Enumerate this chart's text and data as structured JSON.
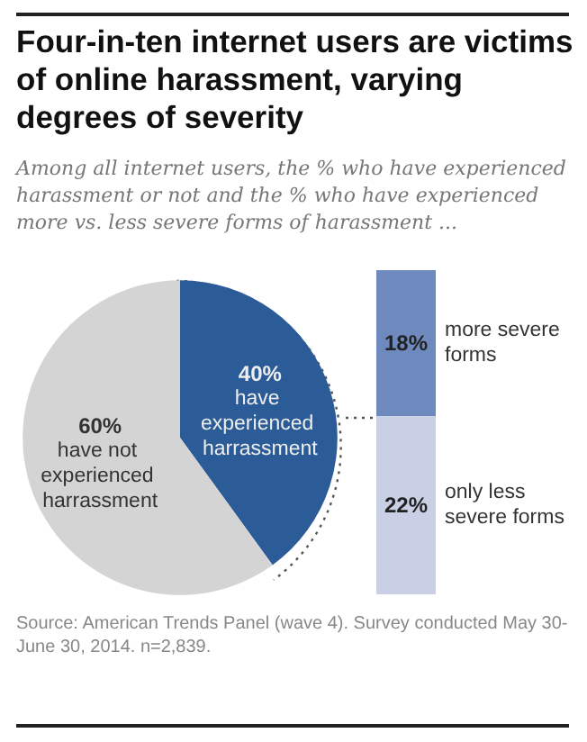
{
  "chart_data": [
    {
      "type": "pie",
      "title": "Four-in-ten  internet users are victims of online harassment,  varying degrees of severity",
      "subtitle": "Among all internet users, the % who have experienced harassment or not and the % who have experienced more vs. less severe forms of harassment ...",
      "annotations": [
        "Source: American Trends Panel (wave 4). Survey conducted May 30-June 30, 2014. n=2,839."
      ],
      "categories": [
        "have experienced harrassment",
        "have not experienced harrassment"
      ],
      "values": [
        40,
        60
      ],
      "colors": [
        "#2b5c98",
        "#d4d4d4"
      ],
      "value_labels": [
        "40%",
        "60%"
      ]
    },
    {
      "type": "bar",
      "stacked": true,
      "categories": [
        null
      ],
      "series": [
        {
          "name": "only less severe forms",
          "color": "#c9d0e6",
          "values": [
            22
          ],
          "value_labels": [
            "22%"
          ]
        },
        {
          "name": "more severe forms",
          "color": "#6d89be",
          "values": [
            18
          ],
          "value_labels": [
            "18%"
          ]
        }
      ]
    }
  ]
}
